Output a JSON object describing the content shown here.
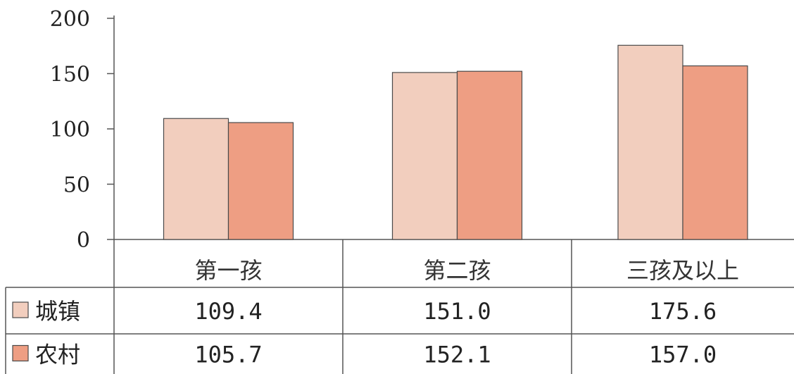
{
  "chart_data": {
    "type": "bar",
    "categories": [
      "第一孩",
      "第二孩",
      "三孩及以上"
    ],
    "series": [
      {
        "name": "城镇",
        "values": [
          109.4,
          151.0,
          175.6
        ],
        "labels": [
          "109.4",
          "151.0",
          "175.6"
        ],
        "color": "#f2cebe"
      },
      {
        "name": "农村",
        "values": [
          105.7,
          152.1,
          157.0
        ],
        "labels": [
          "105.7",
          "152.1",
          "157.0"
        ],
        "color": "#ee9e83"
      }
    ],
    "y_ticks": [
      "0",
      "50",
      "100",
      "150",
      "200"
    ],
    "ylim": [
      0,
      200
    ],
    "grid": false,
    "legend": "data-table-rows"
  }
}
